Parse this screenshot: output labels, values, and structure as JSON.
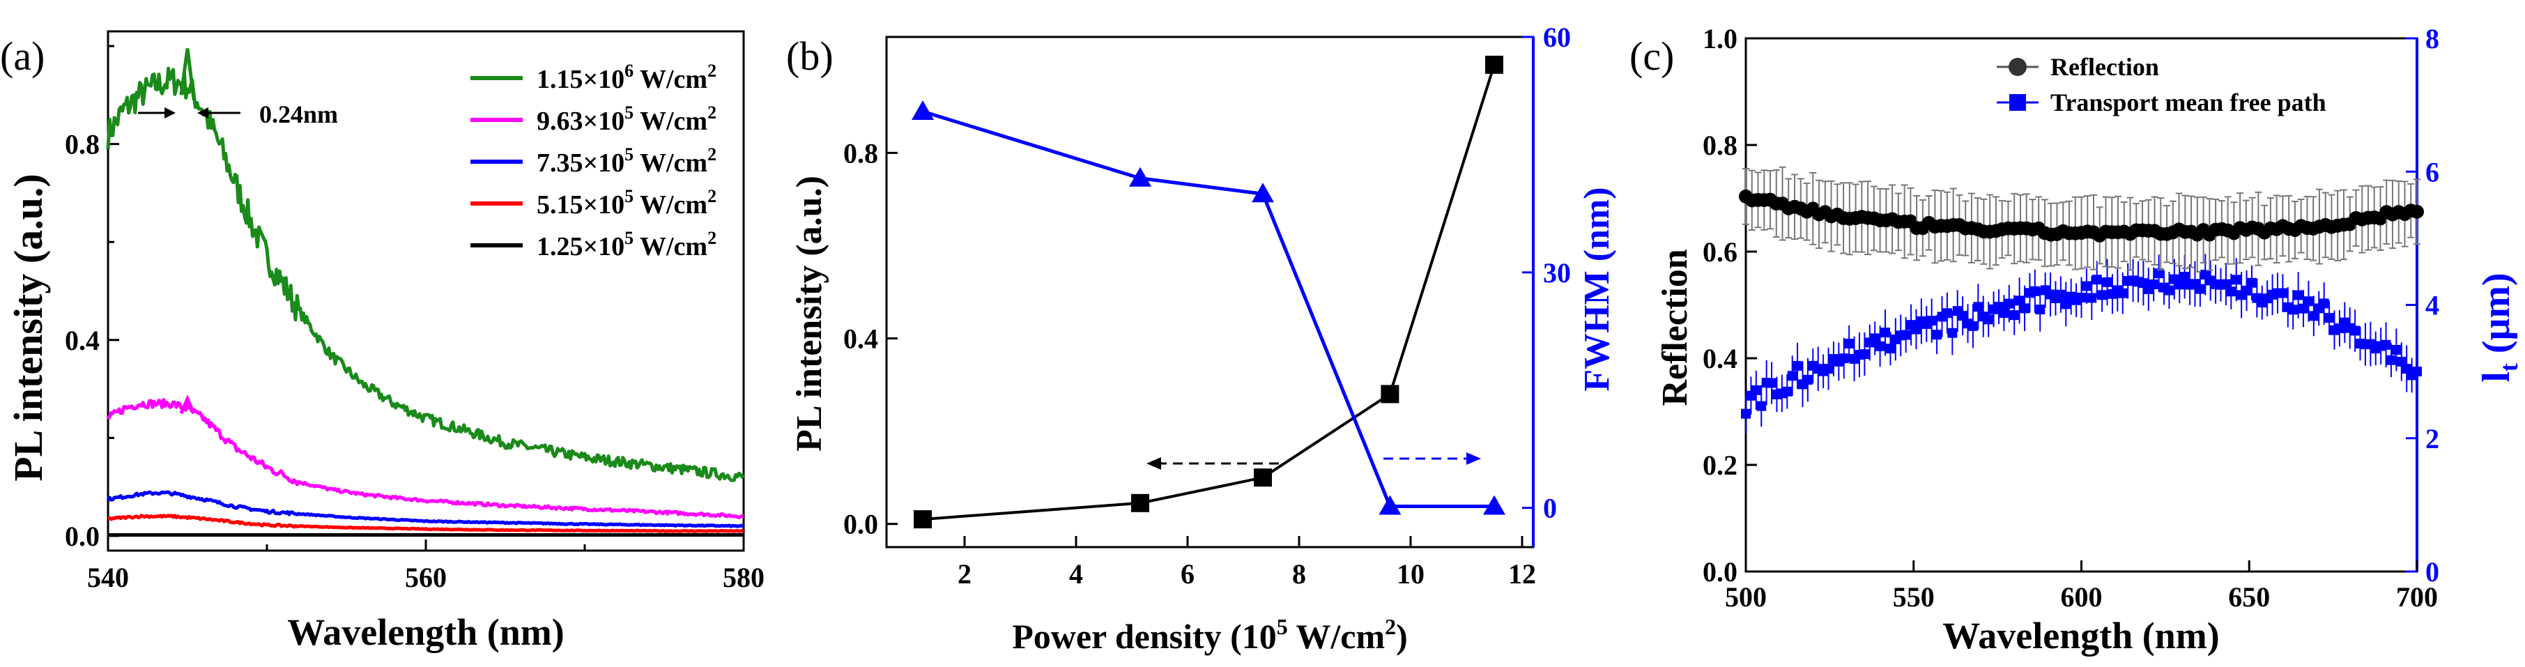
{
  "panels": {
    "a": {
      "label": "(a)",
      "xlabel": "Wavelength (nm)",
      "ylabel": "PL intensity (a.u.)",
      "annotation": "0.24nm",
      "legend": [
        {
          "base": "1.15×10",
          "exp": "6",
          "unit": " W/cm",
          "unit_exp": "2"
        },
        {
          "base": "9.63×10",
          "exp": "5",
          "unit": " W/cm",
          "unit_exp": "2"
        },
        {
          "base": "7.35×10",
          "exp": "5",
          "unit": " W/cm",
          "unit_exp": "2"
        },
        {
          "base": "5.15×10",
          "exp": "5",
          "unit": " W/cm",
          "unit_exp": "2"
        },
        {
          "base": "1.25×10",
          "exp": "5",
          "unit": " W/cm",
          "unit_exp": "2"
        }
      ]
    },
    "b": {
      "label": "(b)",
      "xlabel_pre": "Power density (10",
      "xlabel_exp": "5",
      "xlabel_mid": " W/cm",
      "xlabel_exp2": "2",
      "xlabel_post": ")",
      "ylabel": "PL intensity (a.u.)",
      "y2label": "FWHM (nm)"
    },
    "c": {
      "label": "(c)",
      "xlabel": "Wavelength (nm)",
      "ylabel": "Reflection",
      "y2label_main": "l",
      "y2label_sub": "t",
      "y2label_post": " (μm)",
      "legend": [
        "Reflection",
        "Transport mean free path"
      ]
    }
  },
  "chart_data": [
    {
      "type": "line",
      "panel": "a",
      "xlim": [
        540,
        580
      ],
      "xticks": [
        540,
        560,
        580
      ],
      "ylim": [
        -0.03,
        1.03
      ],
      "yticks": [
        0.0,
        0.4,
        0.8
      ],
      "series": [
        {
          "name": "1.15×10^6 W/cm^2",
          "color": "#1a8a1a",
          "x": [
            540,
            541,
            542,
            543,
            544,
            545,
            546,
            547,
            548,
            549,
            550,
            552,
            554,
            556,
            558,
            560,
            565,
            570,
            575,
            580
          ],
          "y": [
            0.82,
            0.87,
            0.9,
            0.92,
            0.93,
            0.92,
            0.87,
            0.8,
            0.72,
            0.64,
            0.57,
            0.46,
            0.37,
            0.31,
            0.27,
            0.24,
            0.19,
            0.16,
            0.14,
            0.12
          ]
        },
        {
          "name": "9.63×10^5 W/cm^2",
          "color": "#ff00ff",
          "x": [
            540,
            541,
            542,
            543,
            544,
            545,
            546,
            547,
            548,
            549,
            550,
            552,
            554,
            556,
            558,
            560,
            565,
            570,
            575,
            580
          ],
          "y": [
            0.24,
            0.26,
            0.27,
            0.27,
            0.27,
            0.26,
            0.24,
            0.21,
            0.18,
            0.16,
            0.14,
            0.11,
            0.095,
            0.085,
            0.078,
            0.072,
            0.062,
            0.055,
            0.048,
            0.04
          ]
        },
        {
          "name": "7.35×10^5 W/cm^2",
          "color": "#0000ff",
          "x": [
            540,
            542,
            543,
            544,
            546,
            548,
            550,
            555,
            560,
            565,
            570,
            575,
            580
          ],
          "y": [
            0.075,
            0.085,
            0.088,
            0.087,
            0.075,
            0.06,
            0.05,
            0.038,
            0.03,
            0.027,
            0.024,
            0.022,
            0.02
          ]
        },
        {
          "name": "5.15×10^5 W/cm^2",
          "color": "#ff0000",
          "x": [
            540,
            542,
            544,
            546,
            548,
            550,
            555,
            560,
            565,
            570,
            575,
            580
          ],
          "y": [
            0.035,
            0.04,
            0.04,
            0.035,
            0.028,
            0.022,
            0.017,
            0.014,
            0.012,
            0.011,
            0.01,
            0.01
          ]
        },
        {
          "name": "1.25×10^5 W/cm^2",
          "color": "#000000",
          "x": [
            540,
            560,
            580
          ],
          "y": [
            0.002,
            0.002,
            0.002
          ]
        }
      ]
    },
    {
      "type": "line",
      "panel": "b",
      "x": [
        1.25,
        5.15,
        7.35,
        9.63,
        11.5
      ],
      "xlim": [
        0.6,
        12.2
      ],
      "xticks": [
        2,
        4,
        6,
        8,
        10,
        12
      ],
      "ylim": [
        -0.05,
        1.05
      ],
      "yticks": [
        0.0,
        0.4,
        0.8
      ],
      "y2lim": [
        -5,
        60
      ],
      "y2ticks": [
        0,
        30,
        60
      ],
      "series": [
        {
          "name": "PL intensity",
          "axis": "left",
          "color": "#000000",
          "marker": "square",
          "values": [
            0.01,
            0.045,
            0.1,
            0.28,
            0.99
          ]
        },
        {
          "name": "FWHM",
          "axis": "right",
          "color": "#0000ff",
          "marker": "triangle",
          "x": [
            1.25,
            5.15,
            7.35,
            9.63,
            11.5
          ],
          "values": [
            50.5,
            42,
            40,
            0.2,
            0.2
          ]
        }
      ]
    },
    {
      "type": "scatter",
      "panel": "c",
      "xlim": [
        500,
        700
      ],
      "xticks": [
        500,
        550,
        600,
        650,
        700
      ],
      "ylim": [
        0.0,
        1.0
      ],
      "yticks": [
        0.0,
        0.2,
        0.4,
        0.6,
        0.8,
        1.0
      ],
      "y2lim": [
        0,
        8
      ],
      "y2ticks": [
        0,
        2,
        4,
        6,
        8
      ],
      "series": [
        {
          "name": "Reflection",
          "axis": "left",
          "color": "#000000",
          "marker": "circle",
          "x": [
            500,
            525,
            550,
            575,
            600,
            625,
            650,
            675,
            700
          ],
          "values": [
            0.7,
            0.67,
            0.65,
            0.64,
            0.635,
            0.635,
            0.64,
            0.65,
            0.68
          ],
          "error": 0.05
        },
        {
          "name": "Transport mean free path",
          "axis": "right",
          "color": "#0000ff",
          "marker": "square",
          "x": [
            500,
            525,
            550,
            575,
            600,
            625,
            650,
            675,
            700
          ],
          "values": [
            2.5,
            3.2,
            3.6,
            3.9,
            4.2,
            4.4,
            4.25,
            3.8,
            3.0
          ],
          "error": 0.25
        }
      ]
    }
  ]
}
